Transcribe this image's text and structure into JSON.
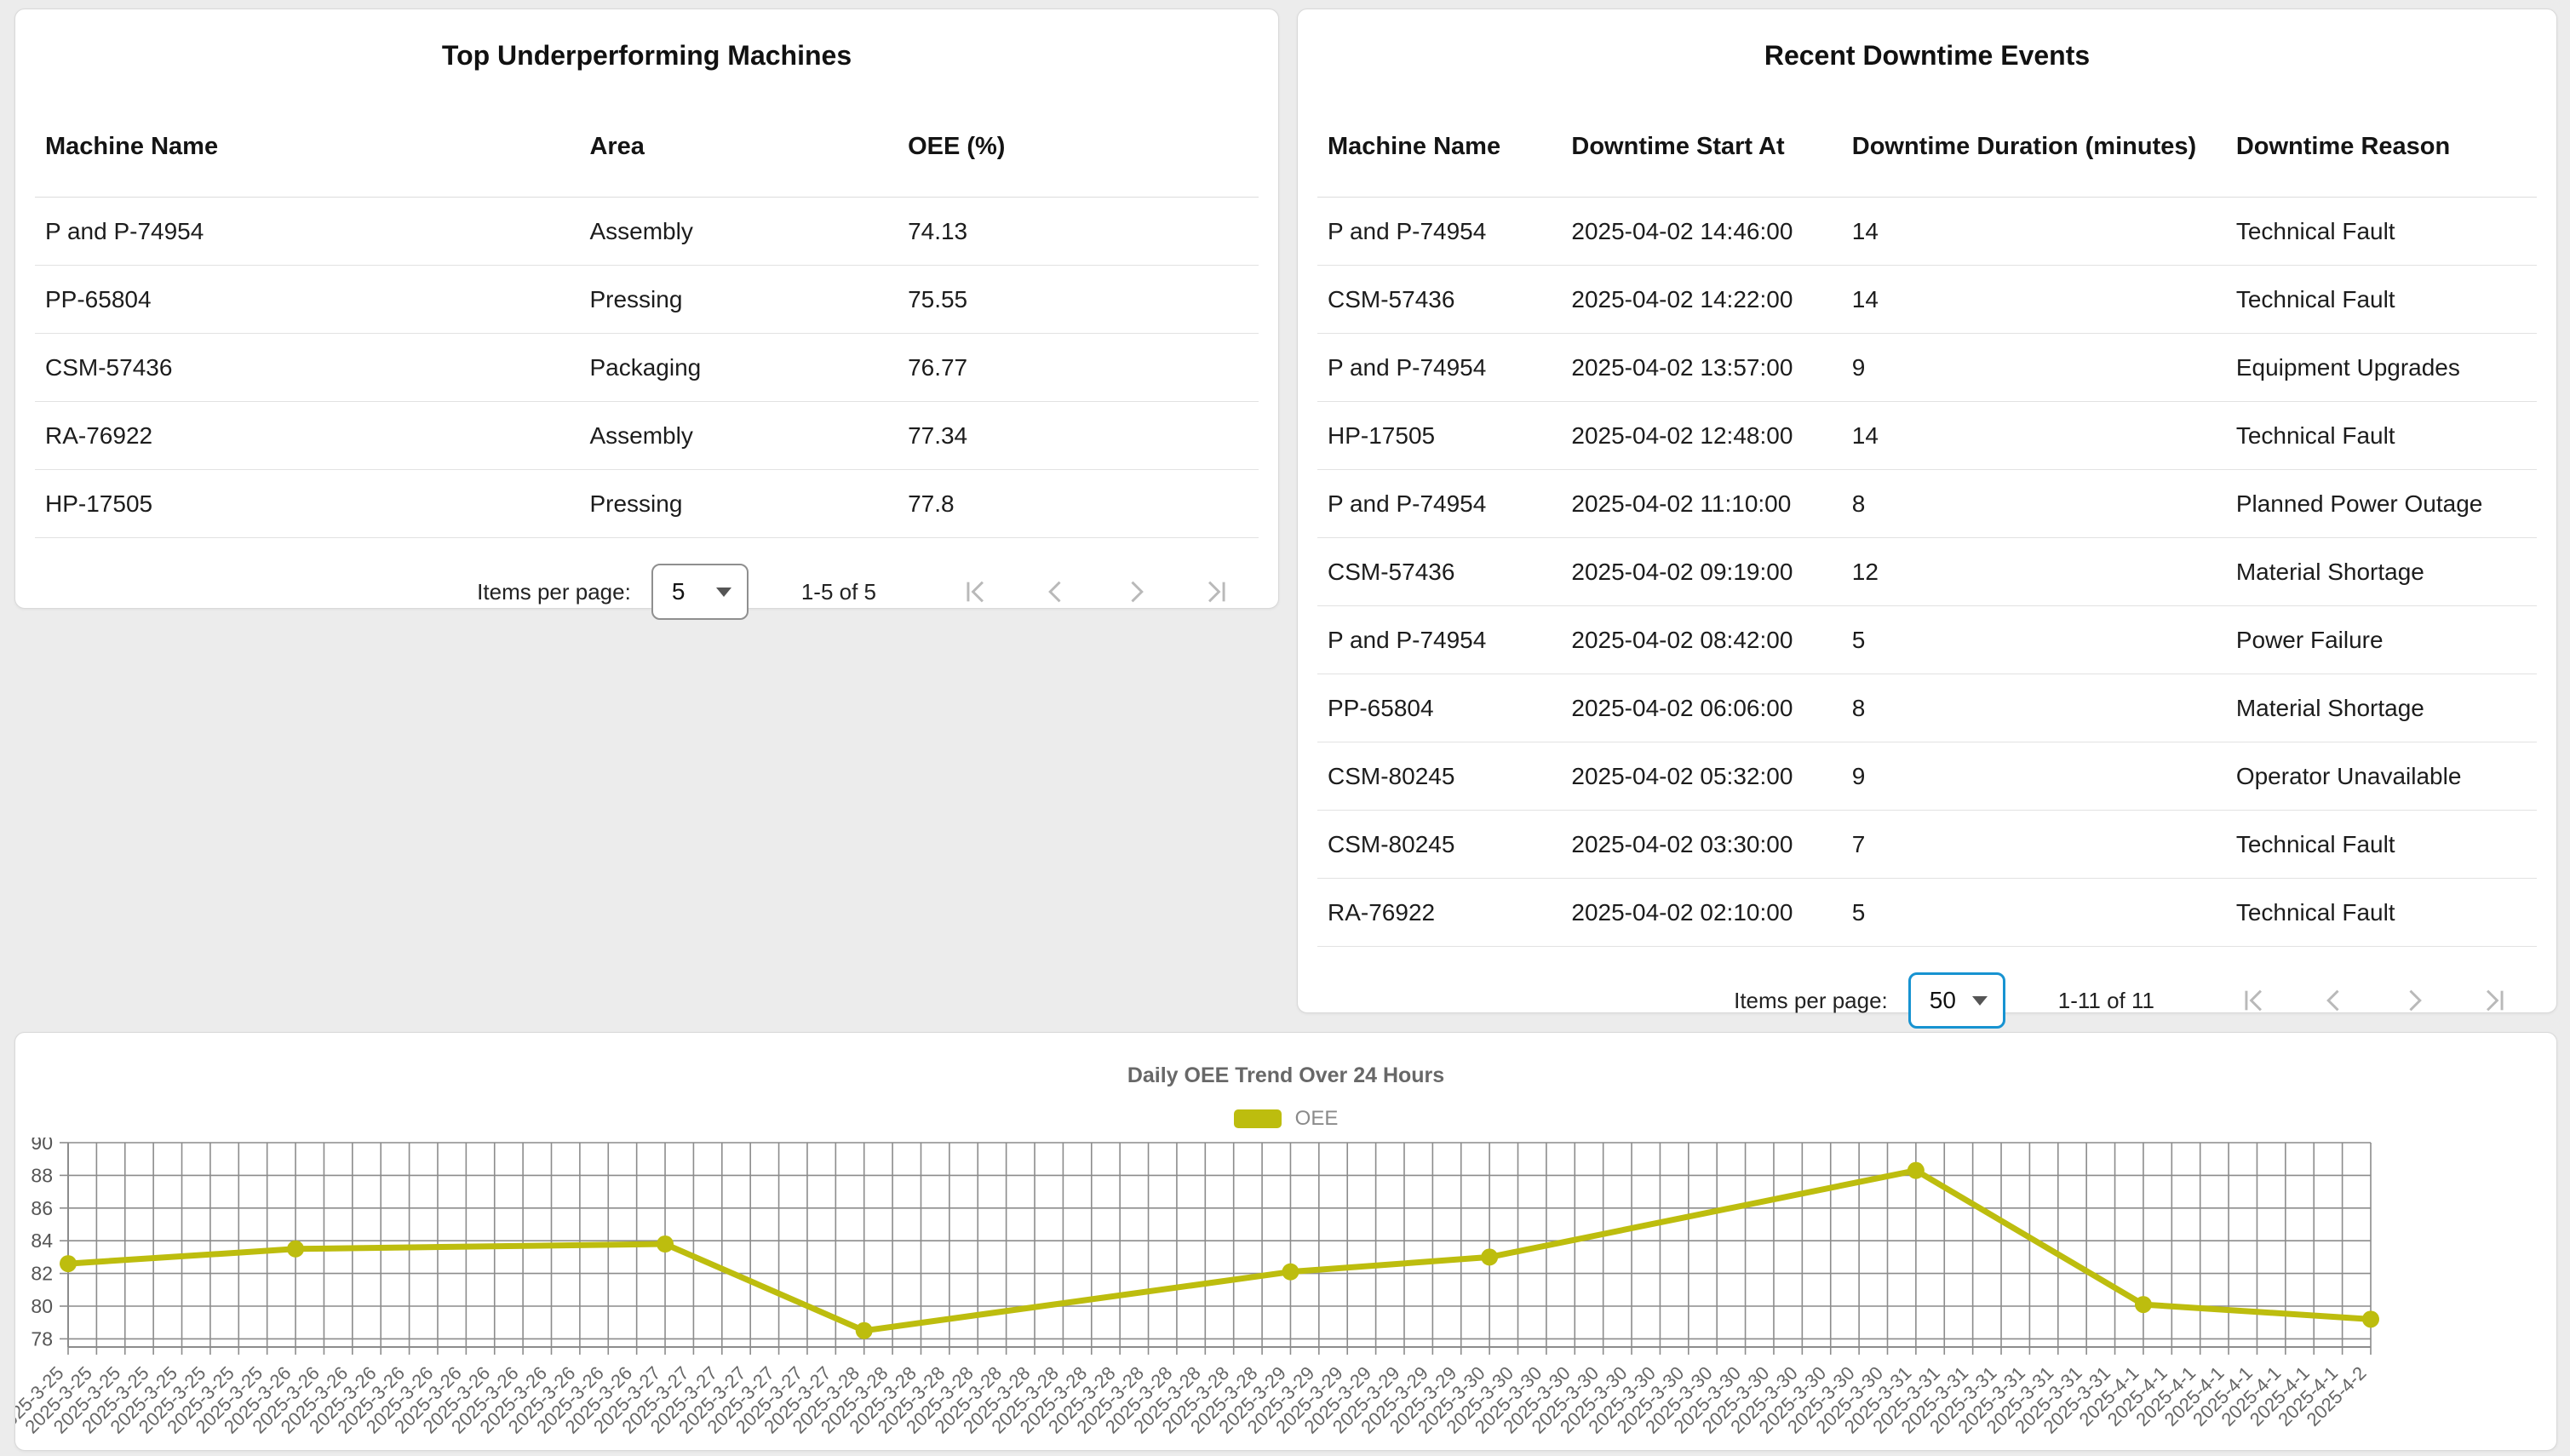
{
  "underperforming_card": {
    "title": "Top Underperforming Machines",
    "columns": [
      "Machine Name",
      "Area",
      "OEE (%)"
    ],
    "rows": [
      [
        "P and P-74954",
        "Assembly",
        "74.13"
      ],
      [
        "PP-65804",
        "Pressing",
        "75.55"
      ],
      [
        "CSM-57436",
        "Packaging",
        "76.77"
      ],
      [
        "RA-76922",
        "Assembly",
        "77.34"
      ],
      [
        "HP-17505",
        "Pressing",
        "77.8"
      ]
    ],
    "pagination": {
      "items_per_page_label": "Items per page:",
      "page_size": "5",
      "range_label": "1-5 of 5"
    }
  },
  "downtime_card": {
    "title": "Recent Downtime Events",
    "columns": [
      "Machine Name",
      "Downtime Start At",
      "Downtime Duration (minutes)",
      "Downtime Reason"
    ],
    "rows": [
      [
        "P and P-74954",
        "2025-04-02 14:46:00",
        "14",
        "Technical Fault"
      ],
      [
        "CSM-57436",
        "2025-04-02 14:22:00",
        "14",
        "Technical Fault"
      ],
      [
        "P and P-74954",
        "2025-04-02 13:57:00",
        "9",
        "Equipment Upgrades"
      ],
      [
        "HP-17505",
        "2025-04-02 12:48:00",
        "14",
        "Technical Fault"
      ],
      [
        "P and P-74954",
        "2025-04-02 11:10:00",
        "8",
        "Planned Power Outage"
      ],
      [
        "CSM-57436",
        "2025-04-02 09:19:00",
        "12",
        "Material Shortage"
      ],
      [
        "P and P-74954",
        "2025-04-02 08:42:00",
        "5",
        "Power Failure"
      ],
      [
        "PP-65804",
        "2025-04-02 06:06:00",
        "8",
        "Material Shortage"
      ],
      [
        "CSM-80245",
        "2025-04-02 05:32:00",
        "9",
        "Operator Unavailable"
      ],
      [
        "CSM-80245",
        "2025-04-02 03:30:00",
        "7",
        "Technical Fault"
      ],
      [
        "RA-76922",
        "2025-04-02 02:10:00",
        "5",
        "Technical Fault"
      ]
    ],
    "pagination": {
      "items_per_page_label": "Items per page:",
      "page_size": "50",
      "range_label": "1-11 of 11",
      "select_focused": true,
      "focus_color": "#1793d1"
    }
  },
  "chart_data": {
    "type": "line",
    "title": "Daily OEE Trend Over 24 Hours",
    "legend_position": "top-center",
    "grid": true,
    "grid_color": "#8c8c8c",
    "axis_label_color": "#666666",
    "ylim": [
      77.5,
      90
    ],
    "yticks": [
      78,
      80,
      82,
      84,
      86,
      88,
      90
    ],
    "x_tick_groups": [
      {
        "label": "2025-3-25",
        "count": 8
      },
      {
        "label": "2025-3-26",
        "count": 13
      },
      {
        "label": "2025-3-27",
        "count": 7
      },
      {
        "label": "2025-3-28",
        "count": 15
      },
      {
        "label": "2025-3-29",
        "count": 7
      },
      {
        "label": "2025-3-30",
        "count": 15
      },
      {
        "label": "2025-3-31",
        "count": 8
      },
      {
        "label": "2025-4-1",
        "count": 8
      },
      {
        "label": "2025-4-2",
        "count": 1
      }
    ],
    "series": [
      {
        "name": "OEE",
        "color": "#bdbd0e",
        "points": [
          {
            "x": "2025-3-25",
            "tick": 0,
            "y": 82.6
          },
          {
            "x": "2025-3-26",
            "tick": 8,
            "y": 83.5
          },
          {
            "x": "2025-3-27",
            "tick": 21,
            "y": 83.8
          },
          {
            "x": "2025-3-28",
            "tick": 28,
            "y": 78.5
          },
          {
            "x": "2025-3-29",
            "tick": 43,
            "y": 82.1
          },
          {
            "x": "2025-3-30",
            "tick": 50,
            "y": 83.0
          },
          {
            "x": "2025-3-31",
            "tick": 65,
            "y": 88.3
          },
          {
            "x": "2025-4-1",
            "tick": 73,
            "y": 80.1
          },
          {
            "x": "2025-4-2",
            "tick": 81,
            "y": 79.2
          }
        ]
      }
    ]
  }
}
